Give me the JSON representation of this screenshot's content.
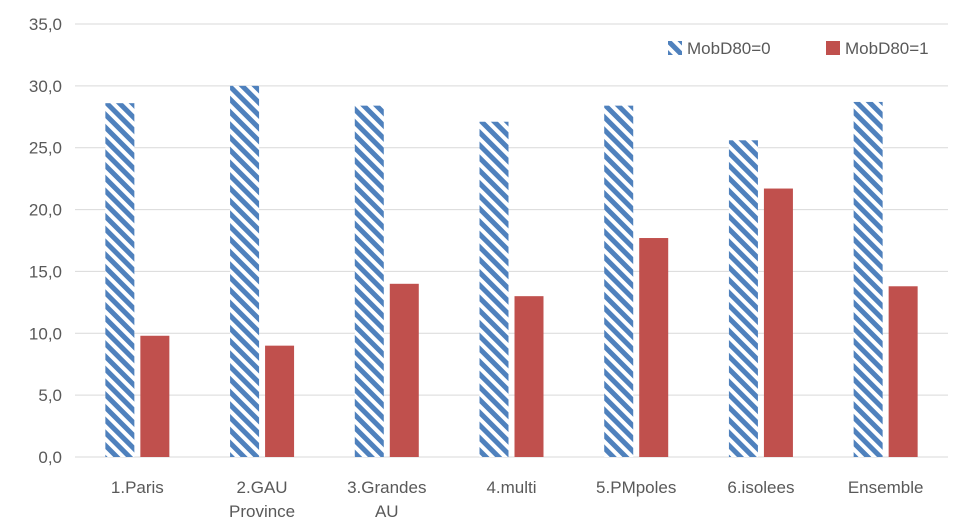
{
  "chart_data": {
    "type": "bar",
    "categories": [
      [
        "1.Paris"
      ],
      [
        "2.GAU",
        "Province"
      ],
      [
        "3.Grandes",
        "AU"
      ],
      [
        "4.multi"
      ],
      [
        "5.PMpoles"
      ],
      [
        "6.isolees"
      ],
      [
        "Ensemble"
      ]
    ],
    "series": [
      {
        "name": "MobD80=0",
        "values": [
          28.6,
          30.0,
          28.4,
          27.1,
          28.4,
          25.6,
          28.7
        ],
        "color": "#4F81BD",
        "pattern": "diagonal-stripes"
      },
      {
        "name": "MobD80=1",
        "values": [
          9.8,
          9.0,
          14.0,
          13.0,
          17.7,
          21.7,
          13.8
        ],
        "color": "#C0504D",
        "pattern": "solid"
      }
    ],
    "ylim": [
      0,
      35
    ],
    "yticks": [
      "0,0",
      "5,0",
      "10,0",
      "15,0",
      "20,0",
      "25,0",
      "30,0",
      "35,0"
    ],
    "ytick_values": [
      0,
      5,
      10,
      15,
      20,
      25,
      30,
      35
    ],
    "grid": true,
    "legend_position": "top-right",
    "gridline_color": "#D9D9D9"
  }
}
